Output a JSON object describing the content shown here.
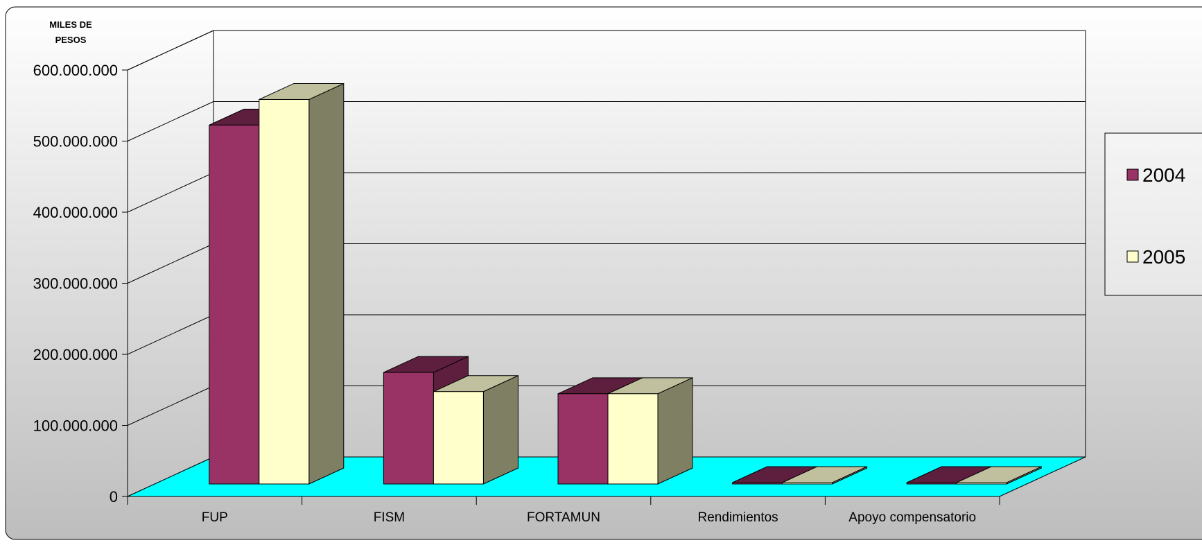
{
  "chart_data": {
    "type": "bar",
    "ylabel": "MILES DE PESOS",
    "categories": [
      "FUP",
      "FISM",
      "FORTAMUN",
      "Rendimientos",
      "Apoyo compensatorio"
    ],
    "series": [
      {
        "name": "2004",
        "values": [
          505000000,
          157000000,
          127000000,
          0,
          0
        ],
        "color": "#993366",
        "top_color": "#5e1f3f",
        "side_color": "#5e1f3f"
      },
      {
        "name": "2005",
        "values": [
          541000000,
          130000000,
          127000000,
          0,
          2000000
        ],
        "color": "#ffffcc",
        "top_color": "#c0c09e",
        "side_color": "#7f7f63"
      }
    ],
    "yticks": [
      "0",
      "100.000.000",
      "200.000.000",
      "300.000.000",
      "400.000.000",
      "500.000.000",
      "600.000.000"
    ],
    "ylim": [
      0,
      600000000
    ],
    "grid": true,
    "legend_position": "right",
    "floor_color": "#00ffff"
  }
}
